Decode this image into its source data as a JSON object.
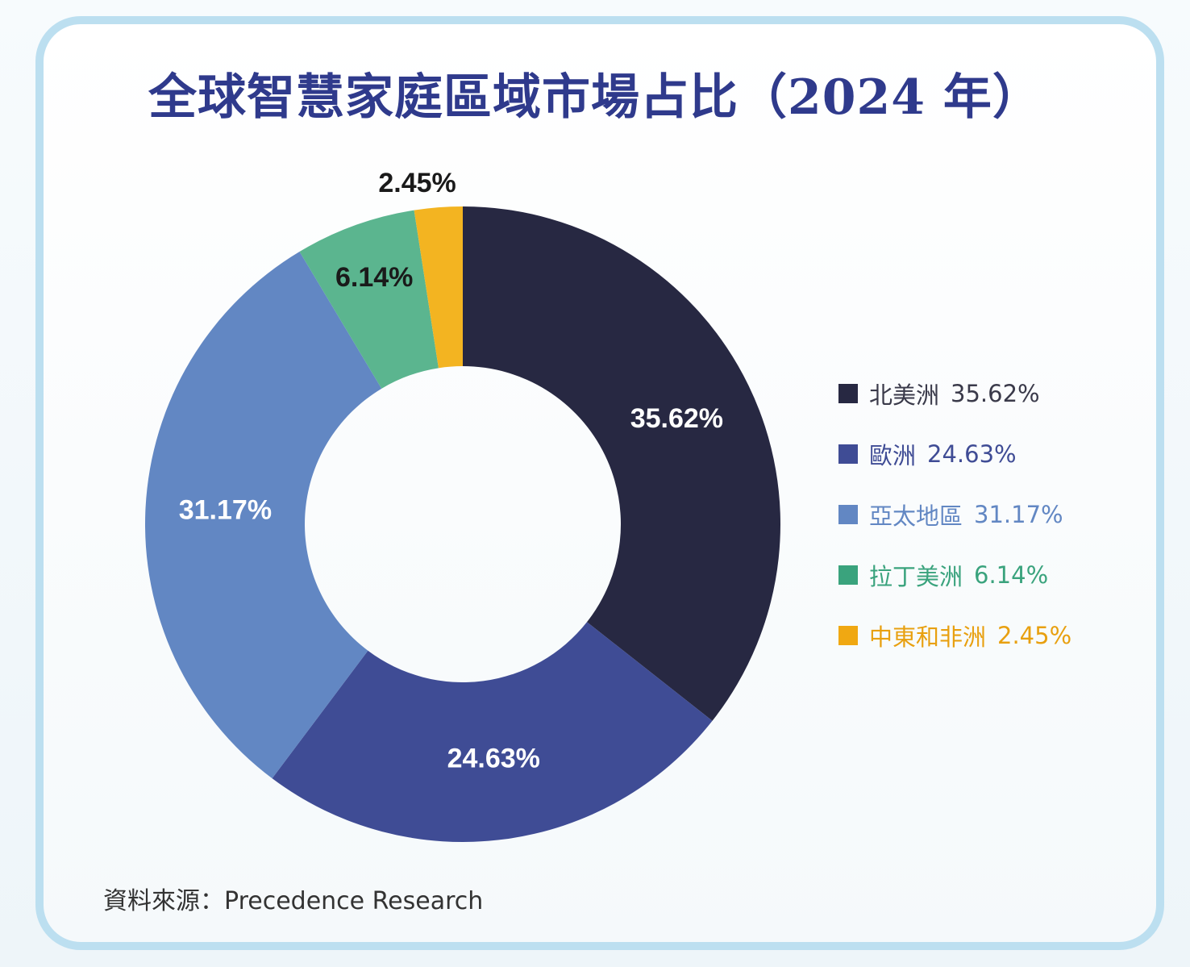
{
  "chart_data": {
    "type": "pie",
    "donut": true,
    "title": "全球智慧家庭區域市場占比（2024 年）",
    "unit": "%",
    "start_angle_deg": 0,
    "direction": "clockwise",
    "slices": [
      {
        "label": "北美洲",
        "value": 35.62,
        "display": "35.62%",
        "color": "#272842",
        "label_color": "#ffffff"
      },
      {
        "label": "歐洲",
        "value": 24.63,
        "display": "24.63%",
        "color": "#3f4c95",
        "label_color": "#ffffff"
      },
      {
        "label": "亞太地區",
        "value": 31.17,
        "display": "31.17%",
        "color": "#6287c3",
        "label_color": "#ffffff"
      },
      {
        "label": "拉丁美洲",
        "value": 6.14,
        "display": "6.14%",
        "color": "#5bb58f",
        "label_color": "#1a1a1a"
      },
      {
        "label": "中東和非洲",
        "value": 2.45,
        "display": "2.45%",
        "color": "#f3b421",
        "label_color": "#1a1a1a"
      }
    ],
    "legend_position": "right"
  },
  "legend": [
    {
      "label": "北美洲",
      "value": "35.62%",
      "color": "#272842",
      "text_color": "#3a3a4a"
    },
    {
      "label": "歐洲",
      "value": "24.63%",
      "color": "#3f4c95",
      "text_color": "#3f4c95"
    },
    {
      "label": "亞太地區",
      "value": "31.17%",
      "color": "#6287c3",
      "text_color": "#6287c3"
    },
    {
      "label": "拉丁美洲",
      "value": "6.14%",
      "color": "#3aa37d",
      "text_color": "#3aa37d"
    },
    {
      "label": "中東和非洲",
      "value": "2.45%",
      "color": "#f0a812",
      "text_color": "#e8a010"
    }
  ],
  "source": "資料來源：Precedence Research"
}
